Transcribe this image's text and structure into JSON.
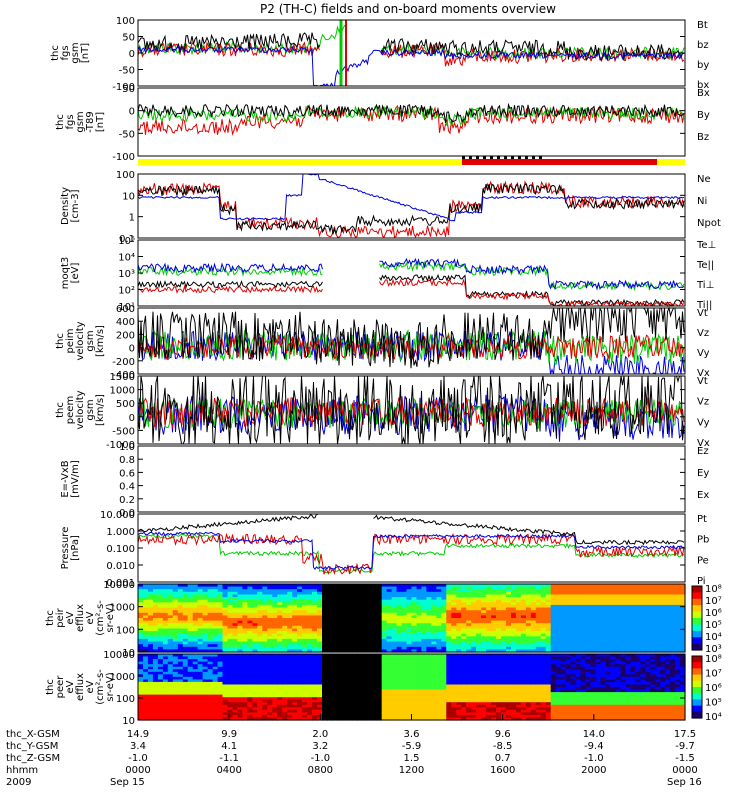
{
  "title": "P2 (TH-C) fields and on-board moments overview",
  "colors": {
    "black": "#000000",
    "red": "#e00000",
    "green": "#00cc00",
    "blue": "#0000e0",
    "yellow": "#ffff00"
  },
  "chart_data": [
    {
      "type": "line",
      "ylabel": [
        "thc",
        "fgs",
        "gsm",
        "[nT]"
      ],
      "yticks": [
        "100",
        "50",
        "0",
        "-50",
        "-100"
      ],
      "ylim": [
        -100,
        100
      ],
      "series": [
        {
          "name": "Bt",
          "color": "#000000"
        },
        {
          "name": "bz",
          "color": "#e00000"
        },
        {
          "name": "by",
          "color": "#00cc00"
        },
        {
          "name": "bx",
          "color": "#0000e0"
        }
      ]
    },
    {
      "type": "line",
      "ylabel": [
        "thc",
        "fgs",
        "gsm",
        "-T89",
        "[nT]"
      ],
      "yticks": [
        "50",
        "0",
        "-50",
        "-100"
      ],
      "ylim": [
        -130,
        80
      ],
      "series": [
        {
          "name": "Bx",
          "color": "#000000"
        },
        {
          "name": "By",
          "color": "#00cc00"
        },
        {
          "name": "Bz",
          "color": "#e00000"
        }
      ]
    },
    {
      "type": "line",
      "ylabel": [
        "Density",
        "[cm-3]"
      ],
      "yticks": [
        "100",
        "10",
        "1",
        "0.1"
      ],
      "yscale": "log",
      "series": [
        {
          "name": "Ne",
          "color": "#e00000"
        },
        {
          "name": "Ni",
          "color": "#000000"
        },
        {
          "name": "Npot",
          "color": "#0000e0"
        }
      ]
    },
    {
      "type": "line",
      "ylabel": [
        "moqt3",
        "[eV]"
      ],
      "yticks": [
        "10⁵",
        "10⁴",
        "10³",
        "10²",
        "10¹"
      ],
      "yscale": "log",
      "series": [
        {
          "name": "Te⊥",
          "color": "#e00000"
        },
        {
          "name": "Te||",
          "color": "#000000"
        },
        {
          "name": "Ti⊥",
          "color": "#0000e0"
        },
        {
          "name": "Ti||",
          "color": "#00cc00"
        }
      ]
    },
    {
      "type": "line",
      "ylabel": [
        "thc",
        "peim",
        "velocity",
        "gsm",
        "[km/s]"
      ],
      "yticks": [
        "600",
        "400",
        "200",
        "0",
        "-200",
        "-400"
      ],
      "ylim": [
        -450,
        600
      ],
      "series": [
        {
          "name": "Vt",
          "color": "#000000"
        },
        {
          "name": "Vz",
          "color": "#e00000"
        },
        {
          "name": "Vy",
          "color": "#00cc00"
        },
        {
          "name": "Vx",
          "color": "#0000e0"
        }
      ]
    },
    {
      "type": "line",
      "ylabel": [
        "thc",
        "peem",
        "velocity",
        "gsm",
        "[km/s]"
      ],
      "yticks": [
        "1500",
        "1000",
        "500",
        "0",
        "-500",
        "-1000"
      ],
      "ylim": [
        -1300,
        1500
      ],
      "series": [
        {
          "name": "Vt",
          "color": "#000000"
        },
        {
          "name": "Vz",
          "color": "#e00000"
        },
        {
          "name": "Vy",
          "color": "#00cc00"
        },
        {
          "name": "Vx",
          "color": "#0000e0"
        }
      ]
    },
    {
      "type": "line",
      "ylabel": [
        "E=-VxB",
        "[mV/m]"
      ],
      "yticks": [
        "1.0",
        "0.8",
        "0.6",
        "0.4",
        "0.2",
        "0.0"
      ],
      "ylim": [
        0,
        1
      ],
      "series": [
        {
          "name": "Ez",
          "color": "#e00000"
        },
        {
          "name": "Ey",
          "color": "#00cc00"
        },
        {
          "name": "Ex",
          "color": "#0000e0"
        }
      ]
    },
    {
      "type": "line",
      "ylabel": [
        "Pressure",
        "[nPa]"
      ],
      "yticks": [
        "10.000",
        "1.000",
        "0.100",
        "0.010",
        "0.001"
      ],
      "yscale": "log",
      "series": [
        {
          "name": "Pt",
          "color": "#000000"
        },
        {
          "name": "Pb",
          "color": "#e00000"
        },
        {
          "name": "Pe",
          "color": "#00cc00"
        },
        {
          "name": "Pi",
          "color": "#0000e0"
        }
      ]
    },
    {
      "type": "heatmap",
      "ylabel": [
        "thc",
        "peir",
        "eV",
        "efflux",
        "eV",
        "(cm²-s-",
        "sr-eV)"
      ],
      "yticks": [
        "10000",
        "1000",
        "100",
        "10"
      ],
      "yscale": "log",
      "colorbar": [
        "10⁸",
        "10⁷",
        "10⁶",
        "10⁵",
        "10⁴",
        "10³"
      ]
    },
    {
      "type": "heatmap",
      "ylabel": [
        "thc",
        "peer",
        "eV",
        "efflux",
        "eV",
        "(cm²-s-",
        "sr-eV)"
      ],
      "yticks": [
        "10000",
        "1000",
        "100",
        "10"
      ],
      "yscale": "log",
      "colorbar": [
        "10⁸",
        "10⁷",
        "10⁶",
        "10⁵",
        "10⁴"
      ]
    }
  ],
  "xaxis": {
    "rows": [
      {
        "label": "thc_X-GSM",
        "values": [
          "14.9",
          "9.9",
          "2.0",
          "3.6",
          "9.6",
          "14.0",
          "17.5"
        ]
      },
      {
        "label": "thc_Y-GSM",
        "values": [
          "3.4",
          "4.1",
          "3.2",
          "-5.9",
          "-8.5",
          "-9.4",
          "-9.7"
        ]
      },
      {
        "label": "thc_Z-GSM",
        "values": [
          "-1.0",
          "-1.1",
          "-1.0",
          "1.5",
          "0.7",
          "-1.0",
          "-1.5"
        ]
      },
      {
        "label": "hhmm",
        "values": [
          "0000",
          "0400",
          "0800",
          "1200",
          "1600",
          "2000",
          "0000"
        ]
      }
    ],
    "year": "2009",
    "start_date": "Sep 15",
    "end_date": "Sep 16"
  }
}
